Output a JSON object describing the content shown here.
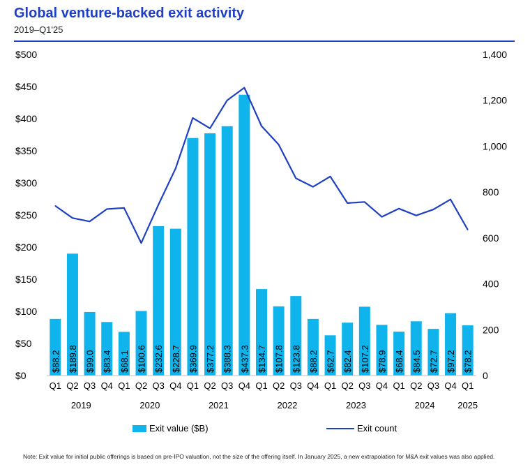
{
  "header": {
    "title": "Global venture-backed exit activity",
    "subtitle": "2019–Q1'25"
  },
  "legend": {
    "bar_label": "Exit value ($B)",
    "line_label": "Exit count"
  },
  "note": "Note: Exit value for initial public offerings is based on pre-IPO valuation, not the size of the offering itself. In January 2025, a new extrapolation for M&A exit values was also applied.",
  "colors": {
    "bar": "#0fb4ec",
    "line": "#1f3fc4",
    "title": "#1f3fc4"
  },
  "chart_data": {
    "type": "bar",
    "categories": [
      "Q1",
      "Q2",
      "Q3",
      "Q4",
      "Q1",
      "Q2",
      "Q3",
      "Q4",
      "Q1",
      "Q2",
      "Q3",
      "Q4",
      "Q1",
      "Q2",
      "Q3",
      "Q4",
      "Q1",
      "Q2",
      "Q3",
      "Q4",
      "Q1",
      "Q2",
      "Q3",
      "Q4",
      "Q1"
    ],
    "years": [
      {
        "label": "2019",
        "start": 0,
        "end": 3
      },
      {
        "label": "2020",
        "start": 4,
        "end": 7
      },
      {
        "label": "2021",
        "start": 8,
        "end": 11
      },
      {
        "label": "2022",
        "start": 12,
        "end": 15
      },
      {
        "label": "2023",
        "start": 16,
        "end": 19
      },
      {
        "label": "2024",
        "start": 20,
        "end": 23
      },
      {
        "label": "2025",
        "start": 24,
        "end": 24
      }
    ],
    "series": [
      {
        "name": "Exit value ($B)",
        "type": "bar",
        "axis": "left",
        "values": [
          88.2,
          189.8,
          99.0,
          83.4,
          68.1,
          100.6,
          232.6,
          228.7,
          369.9,
          377.2,
          388.3,
          437.3,
          134.7,
          107.8,
          123.8,
          88.2,
          62.7,
          82.4,
          107.2,
          78.9,
          68.4,
          84.5,
          72.7,
          97.2,
          78.2
        ],
        "labels": [
          "$88.2",
          "$189.8",
          "$99.0",
          "$83.4",
          "$68.1",
          "$100.6",
          "$232.6",
          "$228.7",
          "$369.9",
          "$377.2",
          "$388.3",
          "$437.3",
          "$134.7",
          "$107.8",
          "$123.8",
          "$88.2",
          "$62.7",
          "$82.4",
          "$107.2",
          "$78.9",
          "$68.4",
          "$84.5",
          "$72.7",
          "$97.2",
          "$78.2"
        ]
      },
      {
        "name": "Exit count",
        "type": "line",
        "axis": "right",
        "values": [
          740,
          687,
          672,
          726,
          731,
          578,
          745,
          903,
          1123,
          1078,
          1200,
          1255,
          1088,
          1007,
          860,
          823,
          868,
          752,
          757,
          692,
          728,
          698,
          724,
          768,
          636
        ]
      }
    ],
    "y_left": {
      "min": 0,
      "max": 500,
      "ticks": [
        "$0",
        "$50",
        "$100",
        "$150",
        "$200",
        "$250",
        "$300",
        "$350",
        "$400",
        "$450",
        "$500"
      ]
    },
    "y_right": {
      "min": 0,
      "max": 1400,
      "ticks": [
        "0",
        "200",
        "400",
        "600",
        "800",
        "1,000",
        "1,200",
        "1,400"
      ]
    },
    "grid": false,
    "legend_position": "bottom"
  }
}
